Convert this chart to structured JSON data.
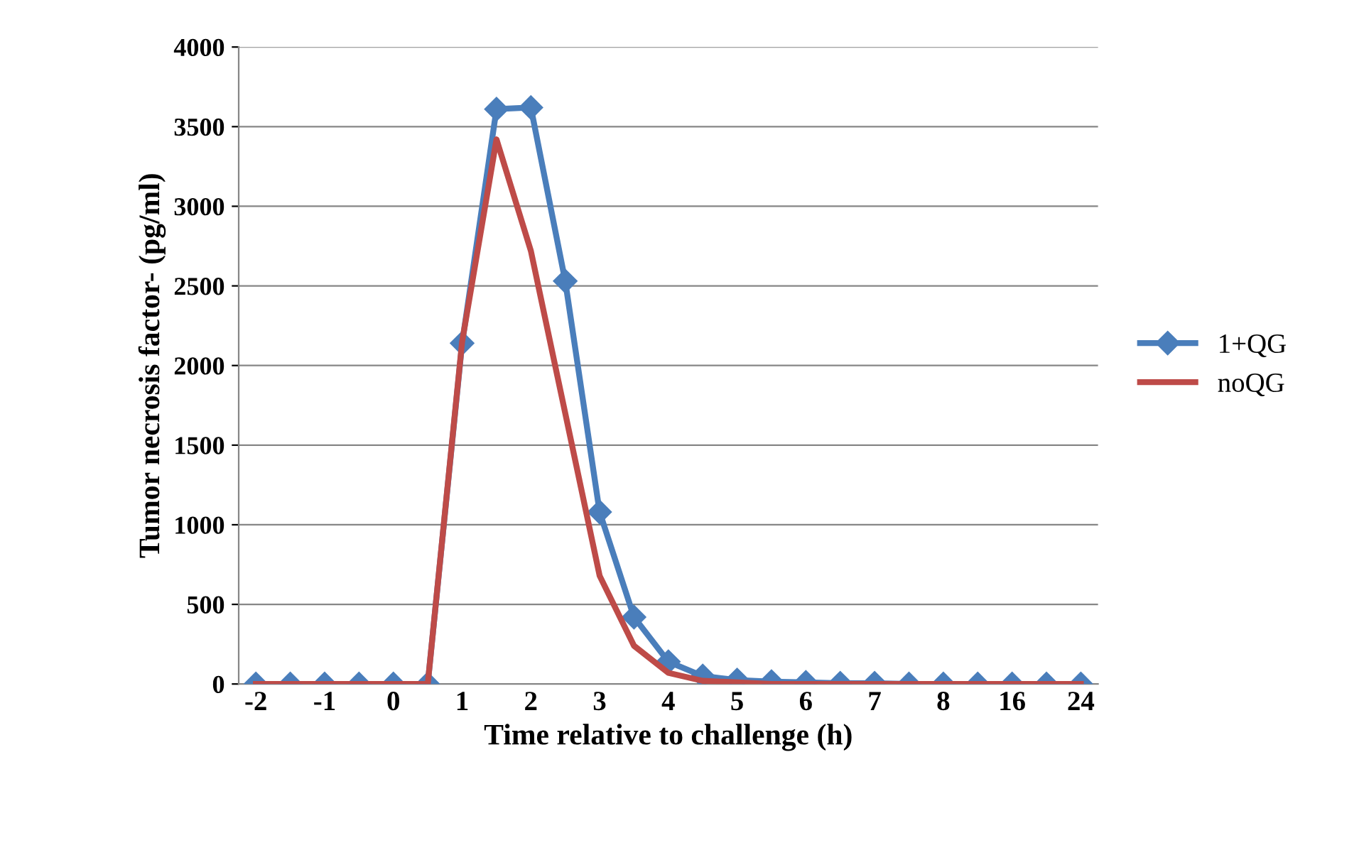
{
  "chart_data": {
    "type": "line",
    "xlabel": "Time relative to challenge (h)",
    "ylabel": "Tumor necrosis factor- (pg/ml)",
    "categories": [
      "-2",
      null,
      "-1",
      null,
      "0",
      null,
      "1",
      null,
      "2",
      null,
      "3",
      null,
      "4",
      null,
      "5",
      null,
      "6",
      null,
      "7",
      null,
      "8",
      null,
      "16",
      null,
      "24"
    ],
    "series": [
      {
        "name": "1+QG",
        "color": "#4a7ebb",
        "marker": "diamond",
        "values": [
          0,
          0,
          0,
          0,
          0,
          0,
          2140,
          3610,
          3620,
          2530,
          1080,
          420,
          140,
          50,
          25,
          15,
          10,
          5,
          5,
          0,
          0,
          0,
          0,
          0,
          0
        ]
      },
      {
        "name": "noQG",
        "color": "#be4b48",
        "marker": "none",
        "values": [
          0,
          0,
          0,
          0,
          0,
          0,
          2150,
          3420,
          2720,
          1700,
          680,
          240,
          70,
          20,
          10,
          0,
          0,
          0,
          0,
          0,
          0,
          0,
          0,
          0,
          0
        ]
      }
    ],
    "ylim": [
      0,
      4000
    ],
    "yticks": [
      0,
      500,
      1000,
      1500,
      2000,
      2500,
      3000,
      3500,
      4000
    ],
    "grid": "y",
    "legend": "right",
    "line_style": "solid"
  }
}
